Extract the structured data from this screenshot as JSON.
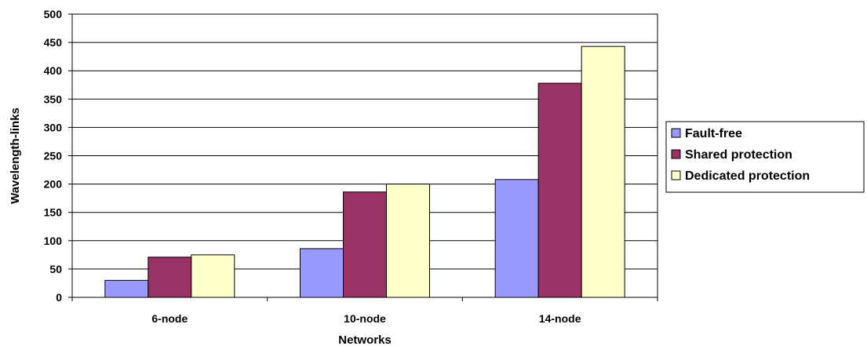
{
  "chart_data": {
    "type": "bar",
    "title": "",
    "xlabel": "Networks",
    "ylabel": "Wavelength-links",
    "categories": [
      "6-node",
      "10-node",
      "14-node"
    ],
    "series": [
      {
        "name": "Fault-free",
        "values": [
          30,
          86,
          208
        ],
        "color": "#9999ff"
      },
      {
        "name": "Shared protection",
        "values": [
          71,
          186,
          378
        ],
        "color": "#993366"
      },
      {
        "name": "Dedicated protection",
        "values": [
          75,
          200,
          443
        ],
        "color": "#ffffcc"
      }
    ],
    "ylim": [
      0,
      500
    ],
    "yticks": [
      0,
      50,
      100,
      150,
      200,
      250,
      300,
      350,
      400,
      450,
      500
    ],
    "grid": true,
    "legend_position": "right"
  }
}
